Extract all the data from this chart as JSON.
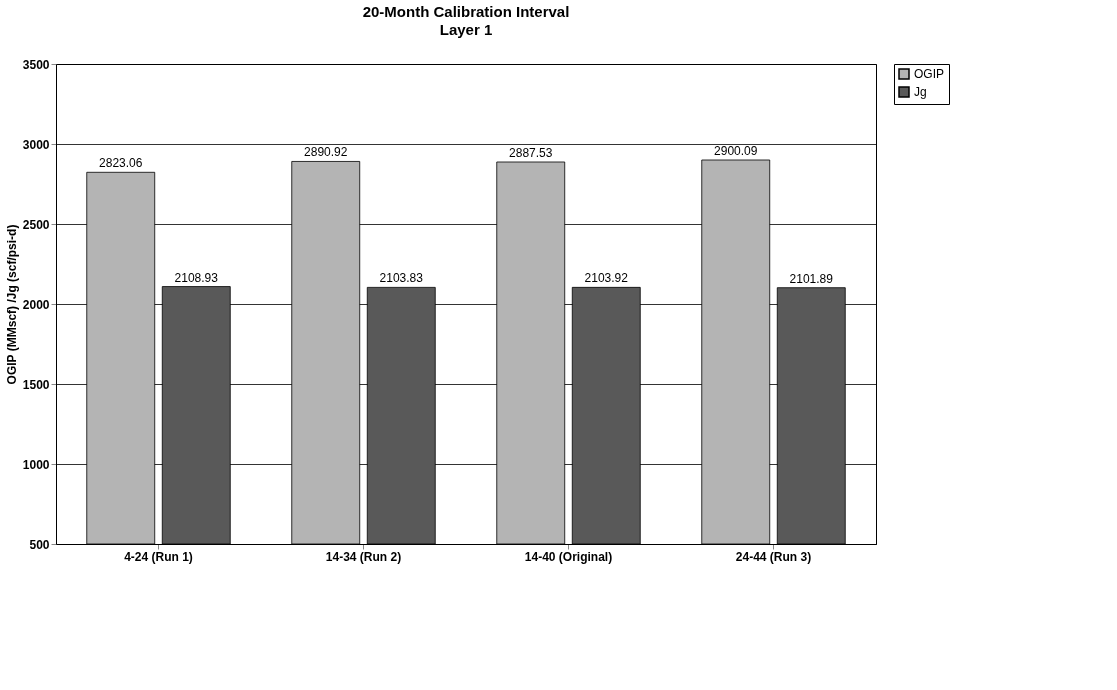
{
  "chart_data": {
    "type": "bar",
    "title": "20-Month Calibration Interval",
    "subtitle": "Layer 1",
    "ylabel": "OGIP (MMscf) /Jg (scf/psi-d)",
    "categories": [
      "4-24 (Run 1)",
      "14-34 (Run 2)",
      "14-40 (Original)",
      "24-44 (Run 3)"
    ],
    "series": [
      {
        "name": "OGIP",
        "color": "#b4b4b4",
        "values": [
          2823.06,
          2890.92,
          2887.53,
          2900.09
        ]
      },
      {
        "name": "Jg",
        "color": "#595959",
        "values": [
          2108.93,
          2103.83,
          2103.92,
          2101.89
        ]
      }
    ],
    "ylim": [
      500,
      3500
    ],
    "yticks": [
      500,
      1000,
      1500,
      2000,
      2500,
      3000,
      3500
    ],
    "grid": "y",
    "legend": "right",
    "data_labels": true
  }
}
